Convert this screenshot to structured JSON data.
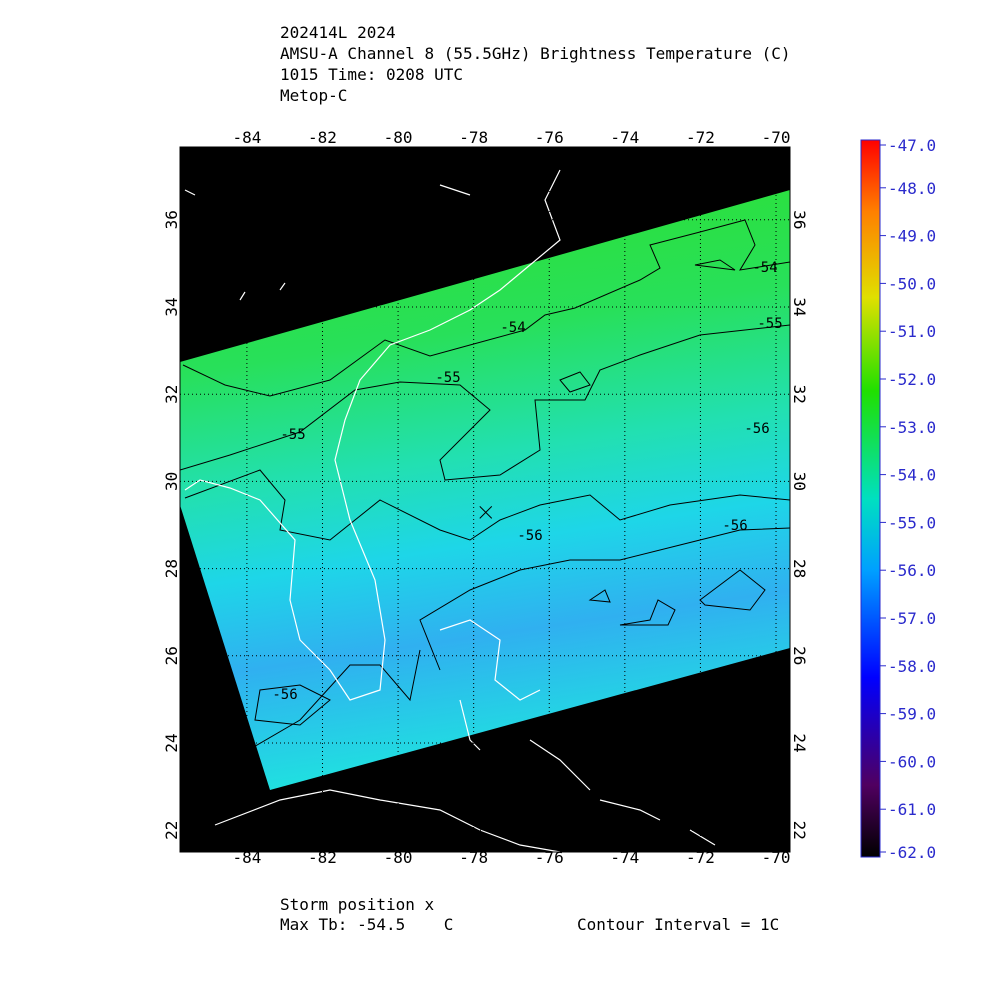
{
  "title": {
    "lines": [
      "202414L 2024",
      "AMSU-A Channel 8 (55.5GHz) Brightness Temperature (C)",
      "1015 Time: 0208 UTC",
      "Metop-C"
    ]
  },
  "map": {
    "lonlim": [
      -85.77,
      -69.63
    ],
    "latlim": [
      21.5,
      37.67
    ],
    "lon_ticks": [
      -84,
      -82,
      -80,
      -78,
      -76,
      -74,
      -72,
      -70
    ],
    "lat_ticks": [
      22,
      24,
      26,
      28,
      30,
      32,
      34,
      36
    ],
    "grid": true,
    "storm": {
      "lon": -77.68,
      "lat": 29.29
    },
    "contour_labels": [
      "-54",
      "-54",
      "-55",
      "-55",
      "-55",
      "-56",
      "-56",
      "-56",
      "-56"
    ]
  },
  "colorbar": {
    "lim": [
      -62,
      -47
    ],
    "ticks": [
      {
        "value": -47,
        "label": "-47.0"
      },
      {
        "value": -48,
        "label": "-48.0"
      },
      {
        "value": -49,
        "label": "-49.0"
      },
      {
        "value": -50,
        "label": "-50.0"
      },
      {
        "value": -51,
        "label": "-51.0"
      },
      {
        "value": -52,
        "label": "-52.0"
      },
      {
        "value": -53,
        "label": "-53.0"
      },
      {
        "value": -54,
        "label": "-54.0"
      },
      {
        "value": -55,
        "label": "-55.0"
      },
      {
        "value": -56,
        "label": "-56.0"
      },
      {
        "value": -57,
        "label": "-57.0"
      },
      {
        "value": -58,
        "label": "-58.0"
      },
      {
        "value": -59,
        "label": "-59.0"
      },
      {
        "value": -60,
        "label": "-60.0"
      },
      {
        "value": -61,
        "label": "-61.0"
      },
      {
        "value": -62,
        "label": "-62.0"
      }
    ]
  },
  "footer": {
    "storm_label": "Storm position x",
    "max_tb": "Max Tb: -54.5    C",
    "contour_interval": "Contour Interval = 1C"
  }
}
